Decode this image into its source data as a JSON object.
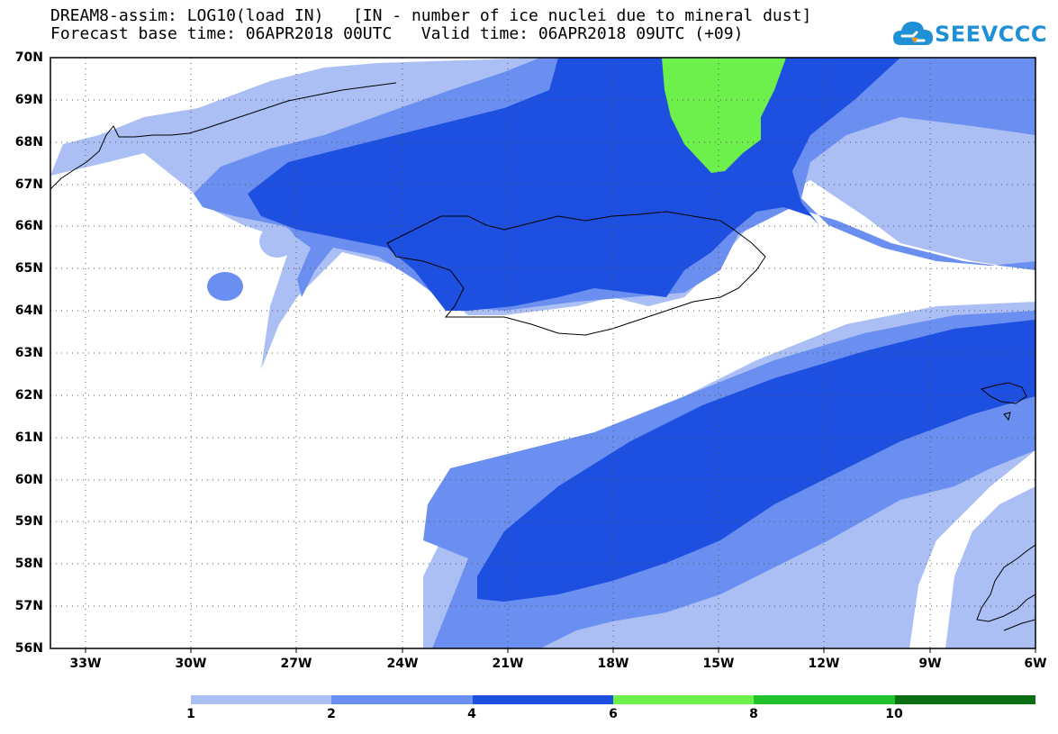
{
  "header": {
    "title_line1": "DREAM8-assim: LOG10(load IN)   [IN - number of ice nuclei due to mineral dust]",
    "title_line2": "Forecast base time: 06APR2018 00UTC   Valid time: 06APR2018 09UTC (+09)"
  },
  "logo": {
    "text": "SEEVCCC",
    "color": "#1f8fd6"
  },
  "map": {
    "lat_labels": [
      "70N",
      "69N",
      "68N",
      "67N",
      "66N",
      "65N",
      "64N",
      "63N",
      "62N",
      "61N",
      "60N",
      "59N",
      "58N",
      "57N",
      "56N"
    ],
    "lon_labels": [
      "33W",
      "30W",
      "27W",
      "24W",
      "21W",
      "18W",
      "15W",
      "12W",
      "9W",
      "6W"
    ]
  },
  "legend": {
    "colors": [
      "#abbff5",
      "#6b8ff0",
      "#1d4fe0",
      "#6df04b",
      "#22c22b",
      "#0a6e12"
    ],
    "labels": [
      "1",
      "2",
      "4",
      "6",
      "8",
      "10"
    ]
  }
}
